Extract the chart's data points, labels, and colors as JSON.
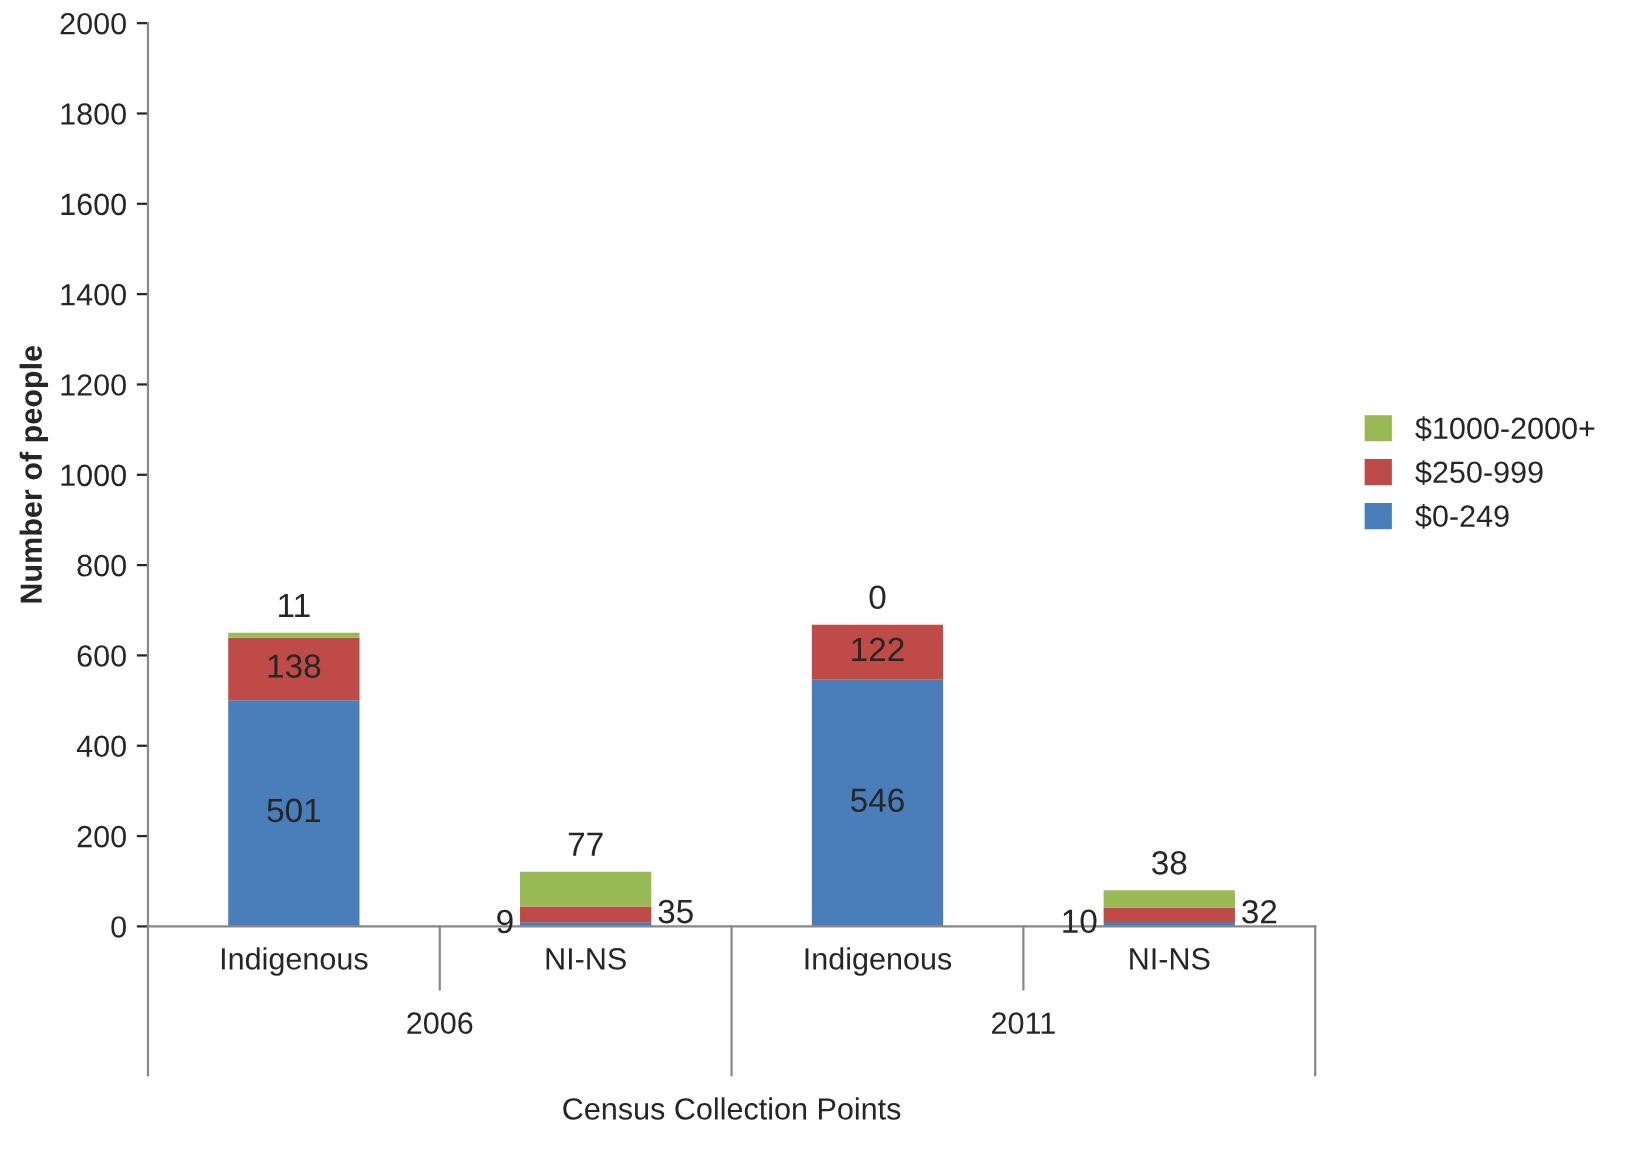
{
  "chart_data": {
    "type": "bar",
    "stacked": true,
    "categories": [
      "Indigenous",
      "NI-NS",
      "Indigenous",
      "NI-NS"
    ],
    "series": [
      {
        "name": "$0-249",
        "color": "#4a7ebb",
        "values": [
          501,
          9,
          546,
          10
        ]
      },
      {
        "name": "$250-999",
        "color": "#be4b48",
        "values": [
          138,
          35,
          122,
          32
        ]
      },
      {
        "name": "$1000-2000+",
        "color": "#98b954",
        "values": [
          11,
          77,
          0,
          38
        ]
      }
    ],
    "ylabel": "Number of people",
    "xlabel": "Census Collection Points",
    "annotations": [
      "2006",
      "2011"
    ],
    "ylim": [
      0,
      2000
    ],
    "yticks": [
      0,
      200,
      400,
      600,
      800,
      1000,
      1200,
      1400,
      1600,
      1800,
      2000
    ],
    "data_labels": true,
    "legend": "right",
    "grid": false
  }
}
